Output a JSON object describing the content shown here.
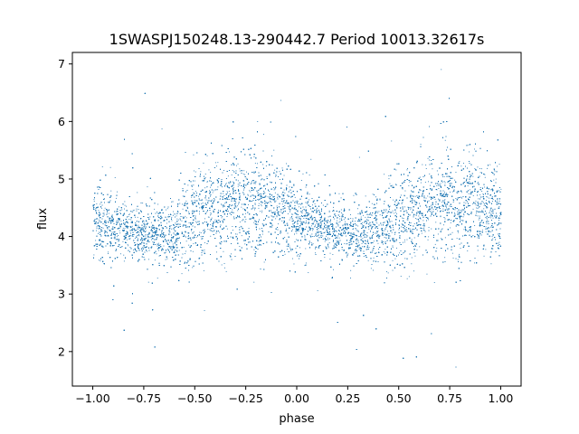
{
  "chart_data": {
    "type": "scatter",
    "title": "1SWASPJ150248.13-290442.7 Period 10013.32617s",
    "xlabel": "phase",
    "ylabel": "flux",
    "xlim": [
      -1.1,
      1.1
    ],
    "ylim": [
      1.4,
      7.2
    ],
    "xticks": [
      -1.0,
      -0.75,
      -0.5,
      -0.25,
      0.0,
      0.25,
      0.5,
      0.75,
      1.0
    ],
    "xtick_labels": [
      "−1.00",
      "−0.75",
      "−0.50",
      "−0.25",
      "0.00",
      "0.25",
      "0.50",
      "0.75",
      "1.00"
    ],
    "yticks": [
      2,
      3,
      4,
      5,
      6,
      7
    ],
    "ytick_labels": [
      "2",
      "3",
      "4",
      "5",
      "6",
      "7"
    ],
    "grid": false,
    "point_color": "#1f77b4",
    "series": [
      {
        "x_range": [
          -1.0,
          1.0
        ],
        "point_count": 22000,
        "profile_phase": [
          -1.0,
          -0.9,
          -0.75,
          -0.6,
          -0.5,
          -0.35,
          -0.25,
          -0.15,
          0.0,
          0.1,
          0.25,
          0.4,
          0.5,
          0.65,
          0.75,
          0.9,
          1.0
        ],
        "profile_flux_center": [
          4.3,
          4.15,
          4.05,
          4.1,
          4.35,
          4.55,
          4.6,
          4.55,
          4.35,
          4.2,
          4.05,
          4.1,
          4.35,
          4.55,
          4.6,
          4.5,
          4.35
        ],
        "profile_flux_spread": [
          0.45,
          0.35,
          0.3,
          0.4,
          0.55,
          0.6,
          0.6,
          0.55,
          0.45,
          0.35,
          0.3,
          0.4,
          0.55,
          0.6,
          0.6,
          0.55,
          0.5
        ]
      }
    ]
  }
}
